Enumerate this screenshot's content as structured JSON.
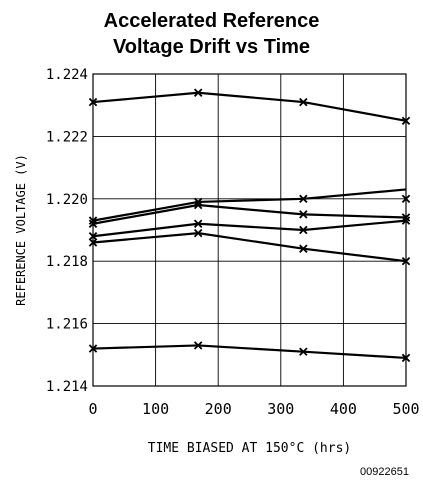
{
  "chart_data": {
    "type": "line",
    "title_lines": [
      "Accelerated Reference",
      "Voltage Drift vs Time"
    ],
    "xlabel": "TIME BIASED AT 150°C (hrs)",
    "ylabel": "REFERENCE VOLTAGE (V)",
    "xlim": [
      0,
      500
    ],
    "ylim": [
      1.214,
      1.224
    ],
    "xticks": [
      "0",
      "100",
      "200",
      "300",
      "400",
      "500"
    ],
    "xtick_values": [
      0,
      100,
      200,
      300,
      400,
      500
    ],
    "yticks": [
      "1.214",
      "1.216",
      "1.218",
      "1.220",
      "1.222",
      "1.224"
    ],
    "ytick_values": [
      1.214,
      1.216,
      1.218,
      1.22,
      1.222,
      1.224
    ],
    "grid": true,
    "x": [
      0,
      168,
      336,
      500
    ],
    "series": [
      {
        "values": [
          1.2231,
          1.2234,
          1.2231,
          1.2225
        ]
      },
      {
        "values": [
          1.2193,
          1.2199,
          1.22,
          1.2203
        ],
        "end_value": 1.22
      },
      {
        "values": [
          1.2192,
          1.2198,
          1.2195,
          1.2194
        ]
      },
      {
        "values": [
          1.2188,
          1.2192,
          1.219,
          1.2193
        ]
      },
      {
        "values": [
          1.2186,
          1.2189,
          1.2184,
          1.218
        ]
      },
      {
        "values": [
          1.2152,
          1.2153,
          1.2151,
          1.2149
        ]
      }
    ],
    "line_color": "#000000",
    "marker": "x"
  },
  "figure_id": "00922651"
}
